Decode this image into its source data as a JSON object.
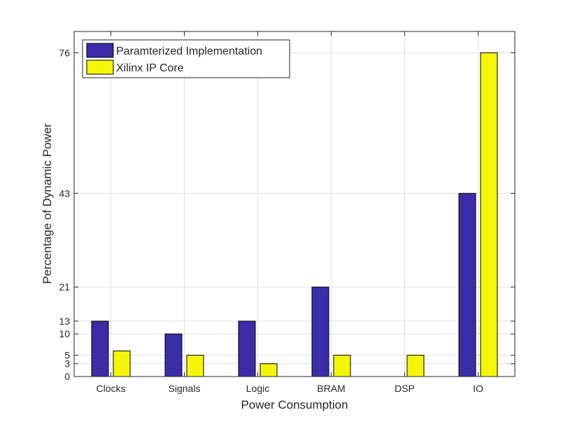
{
  "chart_data": {
    "type": "bar",
    "title": "",
    "xlabel": "Power Consumption",
    "ylabel": "Percentage of Dynamic Power",
    "categories": [
      "Clocks",
      "Signals",
      "Logic",
      "BRAM",
      "DSP",
      "IO"
    ],
    "series": [
      {
        "name": "Paramterized Implementation",
        "values": [
          13,
          10,
          13,
          21,
          0,
          43
        ],
        "color": "#3c2ca8"
      },
      {
        "name": "Xilinx IP Core",
        "values": [
          6,
          5,
          3,
          5,
          5,
          76
        ],
        "color": "#f5f50a"
      }
    ],
    "yticks": [
      0,
      3,
      5,
      10,
      13,
      21,
      43,
      76
    ],
    "ylim": [
      0,
      81
    ],
    "grid": true,
    "legend_position": "top-left"
  }
}
